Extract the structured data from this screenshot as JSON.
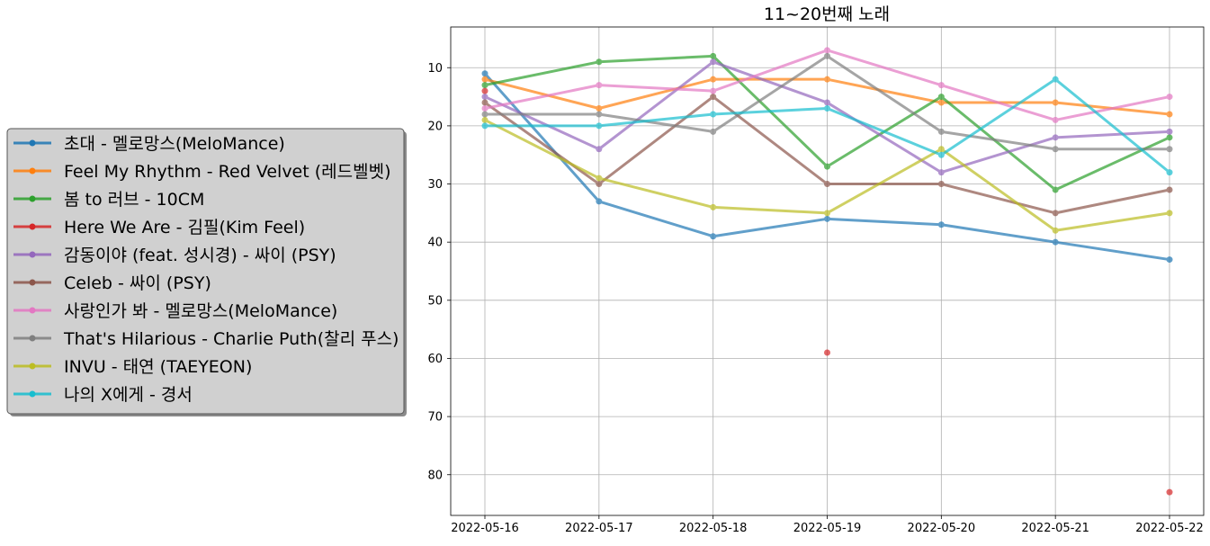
{
  "chart_data": {
    "type": "line",
    "title": "11~20번째 노래",
    "xlabel": "",
    "ylabel": "",
    "x": [
      "2022-05-16",
      "2022-05-17",
      "2022-05-18",
      "2022-05-19",
      "2022-05-20",
      "2022-05-21",
      "2022-05-22"
    ],
    "ylim": [
      87,
      3
    ],
    "y_inverted": true,
    "yticks": [
      10,
      20,
      30,
      40,
      50,
      60,
      70,
      80
    ],
    "grid": true,
    "legend_position": "left",
    "series": [
      {
        "name": "초대 - 멜로망스(MeloMance)",
        "color": "#1f77b4",
        "values": [
          11,
          33,
          39,
          36,
          37,
          40,
          43
        ]
      },
      {
        "name": "Feel My Rhythm - Red Velvet (레드벨벳)",
        "color": "#ff7f0e",
        "values": [
          12,
          17,
          12,
          12,
          16,
          16,
          18
        ]
      },
      {
        "name": "봄 to 러브 - 10CM",
        "color": "#2ca02c",
        "values": [
          13,
          9,
          8,
          27,
          15,
          31,
          22
        ]
      },
      {
        "name": "Here We Are - 김필(Kim Feel)",
        "color": "#d62728",
        "values": [
          14,
          null,
          null,
          59,
          null,
          null,
          83
        ]
      },
      {
        "name": "감동이야 (feat. 성시경) - 싸이 (PSY)",
        "color": "#9467bd",
        "values": [
          15,
          24,
          9,
          16,
          28,
          22,
          21
        ]
      },
      {
        "name": "Celeb - 싸이 (PSY)",
        "color": "#8c564b",
        "values": [
          16,
          30,
          15,
          30,
          30,
          35,
          31
        ]
      },
      {
        "name": "사랑인가 봐 - 멜로망스(MeloMance)",
        "color": "#e377c2",
        "values": [
          17,
          13,
          14,
          7,
          13,
          19,
          15
        ]
      },
      {
        "name": "That's Hilarious - Charlie Puth(찰리 푸스)",
        "color": "#7f7f7f",
        "values": [
          18,
          18,
          21,
          8,
          21,
          24,
          24
        ]
      },
      {
        "name": "INVU - 태연 (TAEYEON)",
        "color": "#bcbd22",
        "values": [
          19,
          29,
          34,
          35,
          24,
          38,
          35
        ]
      },
      {
        "name": "나의 X에게 - 경서",
        "color": "#17becf",
        "values": [
          20,
          20,
          18,
          17,
          25,
          12,
          28
        ]
      }
    ]
  }
}
